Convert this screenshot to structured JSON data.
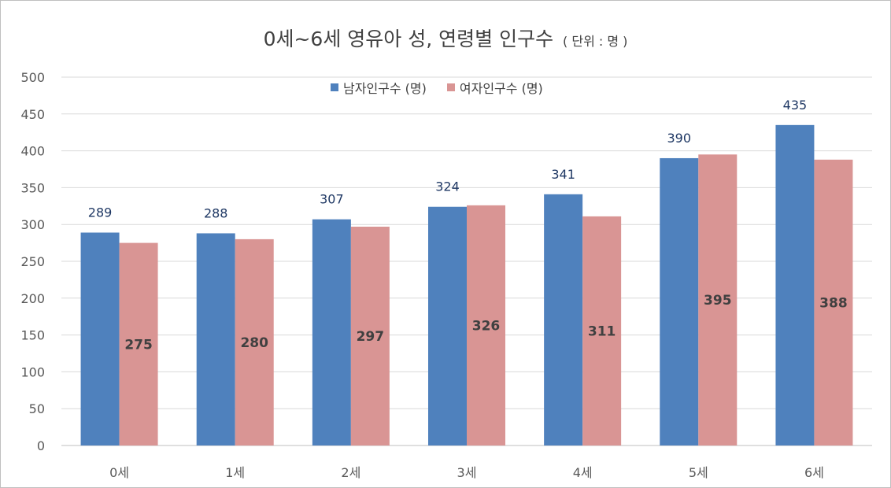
{
  "chart_data": {
    "type": "bar",
    "title": "0세~6세 영유아 성, 연령별 인구수",
    "title_unit": "( 단위 : 명 )",
    "categories": [
      "0세",
      "1세",
      "2세",
      "3세",
      "4세",
      "5세",
      "6세"
    ],
    "series": [
      {
        "name": "남자인구수 (명)",
        "values": [
          289,
          288,
          307,
          324,
          341,
          390,
          435
        ],
        "color": "#4f81bd"
      },
      {
        "name": "여자인구수 (명)",
        "values": [
          275,
          280,
          297,
          326,
          311,
          395,
          388
        ],
        "color": "#d99594"
      }
    ],
    "ylim": [
      0,
      500
    ],
    "yticks": [
      "0",
      "50",
      "100",
      "150",
      "200",
      "250",
      "300",
      "350",
      "400",
      "450",
      "500"
    ],
    "grid": true,
    "legend_position": "top-center"
  }
}
